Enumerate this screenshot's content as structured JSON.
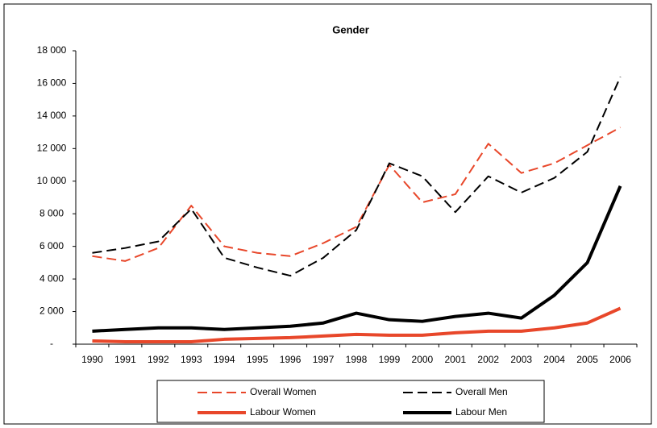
{
  "chart_data": {
    "type": "line",
    "title": "Gender",
    "x": [
      1990,
      1991,
      1992,
      1993,
      1994,
      1995,
      1996,
      1997,
      1998,
      1999,
      2000,
      2001,
      2002,
      2003,
      2004,
      2005,
      2006
    ],
    "ylim": [
      0,
      18000
    ],
    "yticks": [
      {
        "value": 0,
        "label": "-"
      },
      {
        "value": 2000,
        "label": "2 000"
      },
      {
        "value": 4000,
        "label": "4 000"
      },
      {
        "value": 6000,
        "label": "6 000"
      },
      {
        "value": 8000,
        "label": "8 000"
      },
      {
        "value": 10000,
        "label": "10 000"
      },
      {
        "value": 12000,
        "label": "12 000"
      },
      {
        "value": 14000,
        "label": "14 000"
      },
      {
        "value": 16000,
        "label": "16 000"
      },
      {
        "value": 18000,
        "label": "18 000"
      }
    ],
    "series": [
      {
        "name": "Overall Women",
        "color": "#e8472a",
        "line_style": "dashed",
        "values": [
          5400,
          5100,
          5900,
          8500,
          6000,
          5600,
          5400,
          6200,
          7200,
          11000,
          8700,
          9200,
          12300,
          10500,
          11100,
          12200,
          13300
        ]
      },
      {
        "name": "Overall Men",
        "color": "#000000",
        "line_style": "dashed",
        "values": [
          5600,
          5900,
          6300,
          8300,
          5300,
          4700,
          4200,
          5300,
          7000,
          11100,
          10300,
          8100,
          10300,
          9300,
          10200,
          11800,
          16400
        ]
      },
      {
        "name": "Labour Women",
        "color": "#e8472a",
        "line_style": "solid",
        "values": [
          200,
          150,
          150,
          150,
          300,
          350,
          400,
          500,
          600,
          550,
          550,
          700,
          800,
          800,
          1000,
          1300,
          2200
        ]
      },
      {
        "name": "Labour Men",
        "color": "#000000",
        "line_style": "solid",
        "values": [
          800,
          900,
          1000,
          1000,
          900,
          1000,
          1100,
          1300,
          1900,
          1500,
          1400,
          1700,
          1900,
          1600,
          3000,
          5000,
          9700
        ]
      }
    ]
  }
}
